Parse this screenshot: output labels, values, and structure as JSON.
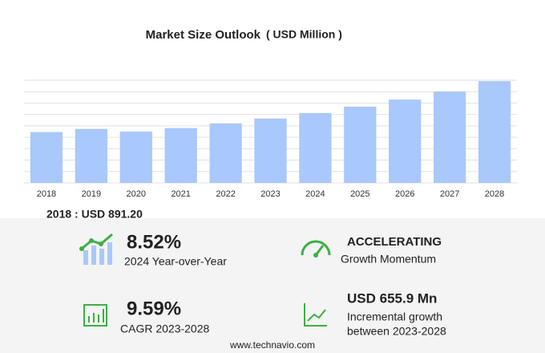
{
  "chart_data": {
    "type": "bar",
    "title": "Market Size Outlook",
    "subtitle": "( USD Million )",
    "categories": [
      "2018",
      "2019",
      "2020",
      "2021",
      "2022",
      "2023",
      "2024",
      "2025",
      "2026",
      "2027",
      "2028"
    ],
    "values": [
      891.2,
      947,
      900,
      961,
      1044,
      1128,
      1225,
      1337,
      1462,
      1601,
      1784
    ],
    "color": "#a9c8fb",
    "ylim": [
      0,
      1800
    ],
    "yticks": [
      0,
      200,
      400,
      600,
      800,
      1000,
      1200,
      1400,
      1600,
      1800
    ],
    "grid": true,
    "tick_labels": false
  },
  "base_label": "2018 : USD  891.20",
  "stats": [
    {
      "value": "8.52%",
      "lines": [
        "2024 Year-over-Year"
      ]
    },
    {
      "value": "ACCELERATING",
      "lines": [
        "Growth Momentum"
      ]
    },
    {
      "value": "9.59%",
      "lines": [
        "CAGR 2023-2028"
      ]
    },
    {
      "value": "USD 655.9 Mn",
      "lines": [
        "Incremental growth",
        "between 2023-2028"
      ]
    }
  ],
  "footer": "www.technavio.com"
}
